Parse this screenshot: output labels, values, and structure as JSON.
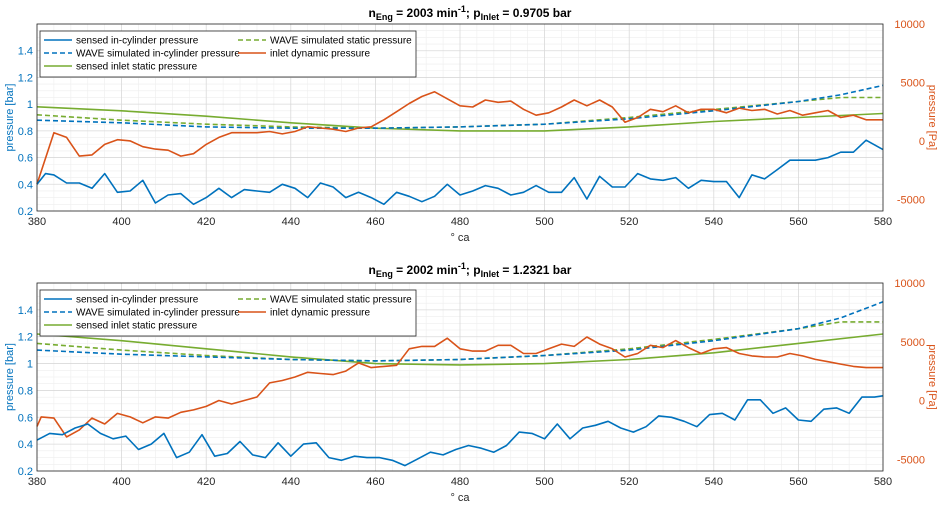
{
  "chart_data": [
    {
      "type": "line",
      "title": {
        "n_main": "n",
        "n_sub": "Eng",
        "eq1": " = 2003 min",
        "exp": "-1",
        "sep": "; p",
        "p_sub": "Inlet",
        "eq2": " = 0.9705 bar"
      },
      "xlabel": "° ca",
      "ylabel_left": "pressure [bar]",
      "ylabel_right": "pressure [Pa]",
      "xlim": [
        380,
        580
      ],
      "ylim_left": [
        0.2,
        1.6
      ],
      "ylim_right": [
        -6000,
        10000
      ],
      "xticks": [
        "380",
        "400",
        "420",
        "440",
        "460",
        "480",
        "500",
        "520",
        "540",
        "560",
        "580"
      ],
      "yticks_left": [
        "0.2",
        "0.4",
        "0.6",
        "0.8",
        "1",
        "1.2",
        "1.4"
      ],
      "yticks_right": [
        "-5000",
        "0",
        "5000",
        "10000"
      ],
      "grid": true,
      "legend": [
        "sensed in-cylinder pressure",
        "WAVE simulated in-cylinder pressure",
        "sensed inlet static pressure",
        "WAVE simulated static pressure",
        "inlet dynamic pressure"
      ],
      "series": [
        {
          "name": "sensed in-cylinder pressure",
          "axis": "left",
          "color": "#0072BD",
          "style": "solid",
          "x": [
            380,
            382,
            384,
            387,
            390,
            393,
            396,
            399,
            402,
            405,
            408,
            411,
            414,
            417,
            420,
            423,
            426,
            429,
            432,
            435,
            438,
            441,
            444,
            447,
            450,
            453,
            456,
            459,
            462,
            465,
            468,
            471,
            474,
            477,
            480,
            483,
            486,
            489,
            492,
            495,
            498,
            501,
            504,
            507,
            510,
            513,
            516,
            519,
            522,
            525,
            528,
            531,
            534,
            537,
            540,
            543,
            546,
            549,
            552,
            555,
            558,
            561,
            564,
            567,
            570,
            573,
            576,
            580
          ],
          "y": [
            0.4,
            0.48,
            0.47,
            0.41,
            0.41,
            0.37,
            0.48,
            0.34,
            0.35,
            0.43,
            0.26,
            0.32,
            0.33,
            0.25,
            0.3,
            0.37,
            0.3,
            0.36,
            0.35,
            0.34,
            0.4,
            0.37,
            0.3,
            0.41,
            0.38,
            0.3,
            0.34,
            0.3,
            0.25,
            0.34,
            0.31,
            0.27,
            0.31,
            0.4,
            0.32,
            0.35,
            0.39,
            0.37,
            0.32,
            0.34,
            0.39,
            0.34,
            0.34,
            0.45,
            0.29,
            0.46,
            0.38,
            0.38,
            0.48,
            0.44,
            0.43,
            0.45,
            0.37,
            0.43,
            0.42,
            0.42,
            0.3,
            0.47,
            0.44,
            0.51,
            0.58,
            0.58,
            0.58,
            0.6,
            0.64,
            0.64,
            0.73,
            0.66
          ]
        },
        {
          "name": "WAVE simulated in-cylinder pressure",
          "axis": "left",
          "color": "#0072BD",
          "style": "dashed",
          "x": [
            380,
            400,
            420,
            440,
            460,
            480,
            500,
            520,
            540,
            560,
            570,
            580
          ],
          "y": [
            0.88,
            0.86,
            0.83,
            0.82,
            0.82,
            0.83,
            0.85,
            0.89,
            0.95,
            1.02,
            1.07,
            1.14
          ]
        },
        {
          "name": "sensed inlet static pressure",
          "axis": "left",
          "color": "#77AC30",
          "style": "solid",
          "x": [
            380,
            400,
            420,
            440,
            460,
            480,
            500,
            520,
            540,
            560,
            580
          ],
          "y": [
            0.98,
            0.95,
            0.91,
            0.86,
            0.82,
            0.8,
            0.8,
            0.83,
            0.87,
            0.9,
            0.93
          ]
        },
        {
          "name": "WAVE simulated static pressure",
          "axis": "left",
          "color": "#77AC30",
          "style": "dashed",
          "x": [
            380,
            400,
            420,
            440,
            460,
            480,
            500,
            520,
            540,
            560,
            570,
            580
          ],
          "y": [
            0.92,
            0.88,
            0.85,
            0.83,
            0.82,
            0.83,
            0.85,
            0.9,
            0.96,
            1.02,
            1.05,
            1.05
          ]
        },
        {
          "name": "inlet dynamic pressure",
          "axis": "right",
          "color": "#D95319",
          "style": "solid",
          "x": [
            380,
            384,
            387,
            390,
            393,
            396,
            399,
            402,
            405,
            408,
            411,
            414,
            417,
            420,
            423,
            426,
            429,
            432,
            435,
            438,
            441,
            444,
            447,
            450,
            453,
            456,
            459,
            462,
            465,
            468,
            471,
            474,
            477,
            480,
            483,
            486,
            489,
            492,
            495,
            498,
            501,
            504,
            507,
            510,
            513,
            516,
            519,
            522,
            525,
            528,
            531,
            534,
            537,
            540,
            543,
            546,
            549,
            552,
            555,
            558,
            561,
            564,
            567,
            570,
            573,
            576,
            580
          ],
          "y": [
            -3700,
            700,
            300,
            -1300,
            -1200,
            -300,
            100,
            0,
            -500,
            -700,
            -800,
            -1300,
            -1100,
            -300,
            300,
            700,
            700,
            700,
            800,
            600,
            800,
            1200,
            1100,
            1000,
            800,
            1100,
            1200,
            1800,
            2500,
            3200,
            3800,
            4200,
            3600,
            3000,
            2900,
            3500,
            3300,
            3400,
            2700,
            2200,
            2400,
            2900,
            3500,
            3000,
            3500,
            2900,
            1600,
            2000,
            2700,
            2500,
            3000,
            2400,
            2700,
            2700,
            2400,
            2800,
            2600,
            2700,
            2300,
            2600,
            2200,
            2400,
            2600,
            2000,
            2200,
            1800,
            1800
          ]
        }
      ]
    },
    {
      "type": "line",
      "title": {
        "n_main": "n",
        "n_sub": "Eng",
        "eq1": " = 2002 min",
        "exp": "-1",
        "sep": "; p",
        "p_sub": "Inlet",
        "eq2": " = 1.2321 bar"
      },
      "xlabel": "° ca",
      "ylabel_left": "pressure [bar]",
      "ylabel_right": "pressure [Pa]",
      "xlim": [
        380,
        580
      ],
      "ylim_left": [
        0.2,
        1.6
      ],
      "ylim_right": [
        -6000,
        10000
      ],
      "xticks": [
        "380",
        "400",
        "420",
        "440",
        "460",
        "480",
        "500",
        "520",
        "540",
        "560",
        "580"
      ],
      "yticks_left": [
        "0.2",
        "0.4",
        "0.6",
        "0.8",
        "1",
        "1.2",
        "1.4"
      ],
      "yticks_right": [
        "-5000",
        "0",
        "5000",
        "10000"
      ],
      "grid": true,
      "legend": [
        "sensed in-cylinder pressure",
        "WAVE simulated in-cylinder pressure",
        "sensed inlet static pressure",
        "WAVE simulated static pressure",
        "inlet dynamic pressure"
      ],
      "series": [
        {
          "name": "sensed in-cylinder pressure",
          "axis": "left",
          "color": "#0072BD",
          "style": "solid",
          "x": [
            380,
            383,
            386,
            389,
            392,
            395,
            398,
            401,
            404,
            407,
            410,
            413,
            416,
            419,
            422,
            425,
            428,
            431,
            434,
            437,
            440,
            443,
            446,
            449,
            452,
            455,
            458,
            461,
            464,
            467,
            470,
            473,
            476,
            479,
            482,
            485,
            488,
            491,
            494,
            497,
            500,
            503,
            506,
            509,
            512,
            515,
            518,
            521,
            524,
            527,
            530,
            533,
            536,
            539,
            542,
            545,
            548,
            551,
            554,
            557,
            560,
            563,
            566,
            569,
            572,
            575,
            578,
            580
          ],
          "y": [
            0.43,
            0.48,
            0.47,
            0.52,
            0.55,
            0.48,
            0.44,
            0.46,
            0.36,
            0.4,
            0.48,
            0.3,
            0.34,
            0.47,
            0.31,
            0.33,
            0.42,
            0.32,
            0.3,
            0.41,
            0.31,
            0.4,
            0.41,
            0.3,
            0.28,
            0.31,
            0.3,
            0.3,
            0.28,
            0.24,
            0.29,
            0.34,
            0.32,
            0.36,
            0.39,
            0.37,
            0.34,
            0.39,
            0.49,
            0.48,
            0.44,
            0.55,
            0.44,
            0.52,
            0.54,
            0.57,
            0.52,
            0.49,
            0.53,
            0.61,
            0.6,
            0.57,
            0.53,
            0.62,
            0.63,
            0.58,
            0.73,
            0.73,
            0.63,
            0.67,
            0.58,
            0.57,
            0.66,
            0.67,
            0.63,
            0.75,
            0.75,
            0.76
          ]
        },
        {
          "name": "WAVE simulated in-cylinder pressure",
          "axis": "left",
          "color": "#0072BD",
          "style": "dashed",
          "x": [
            380,
            400,
            420,
            440,
            460,
            480,
            500,
            520,
            540,
            560,
            570,
            580
          ],
          "y": [
            1.1,
            1.07,
            1.05,
            1.03,
            1.02,
            1.03,
            1.06,
            1.1,
            1.17,
            1.26,
            1.34,
            1.46
          ]
        },
        {
          "name": "sensed inlet static pressure",
          "axis": "left",
          "color": "#77AC30",
          "style": "solid",
          "x": [
            380,
            400,
            420,
            440,
            460,
            480,
            500,
            520,
            540,
            560,
            580
          ],
          "y": [
            1.22,
            1.17,
            1.11,
            1.05,
            1.0,
            0.99,
            1.0,
            1.03,
            1.08,
            1.15,
            1.22
          ]
        },
        {
          "name": "WAVE simulated static pressure",
          "axis": "left",
          "color": "#77AC30",
          "style": "dashed",
          "x": [
            380,
            400,
            420,
            440,
            460,
            480,
            500,
            520,
            540,
            560,
            570,
            580
          ],
          "y": [
            1.15,
            1.1,
            1.06,
            1.03,
            1.02,
            1.03,
            1.06,
            1.11,
            1.18,
            1.26,
            1.31,
            1.31
          ]
        },
        {
          "name": "inlet dynamic pressure",
          "axis": "right",
          "color": "#D95319",
          "style": "solid",
          "x": [
            380,
            381,
            384,
            387,
            390,
            393,
            396,
            399,
            402,
            405,
            408,
            411,
            414,
            417,
            420,
            423,
            426,
            429,
            432,
            435,
            438,
            441,
            444,
            447,
            450,
            453,
            456,
            459,
            462,
            465,
            468,
            471,
            474,
            477,
            480,
            483,
            486,
            489,
            492,
            495,
            498,
            501,
            504,
            507,
            510,
            513,
            516,
            519,
            522,
            525,
            528,
            531,
            534,
            537,
            540,
            543,
            546,
            549,
            552,
            555,
            558,
            561,
            564,
            567,
            570,
            573,
            576,
            580
          ],
          "y": [
            -2200,
            -1400,
            -1500,
            -3100,
            -2500,
            -1500,
            -2000,
            -1100,
            -1400,
            -1900,
            -1400,
            -1500,
            -1000,
            -800,
            -500,
            0,
            -300,
            0,
            300,
            1500,
            1700,
            2000,
            2400,
            2300,
            2200,
            2500,
            3200,
            2800,
            2900,
            3000,
            4400,
            4600,
            4600,
            5300,
            4400,
            4200,
            4200,
            4700,
            4700,
            4000,
            4000,
            4400,
            4800,
            4600,
            5400,
            4800,
            4400,
            3700,
            4000,
            4700,
            4500,
            5100,
            4500,
            4000,
            4400,
            4500,
            4000,
            3800,
            3700,
            3700,
            4000,
            3800,
            3500,
            3300,
            3100,
            2900,
            2800,
            2800
          ]
        }
      ]
    }
  ]
}
